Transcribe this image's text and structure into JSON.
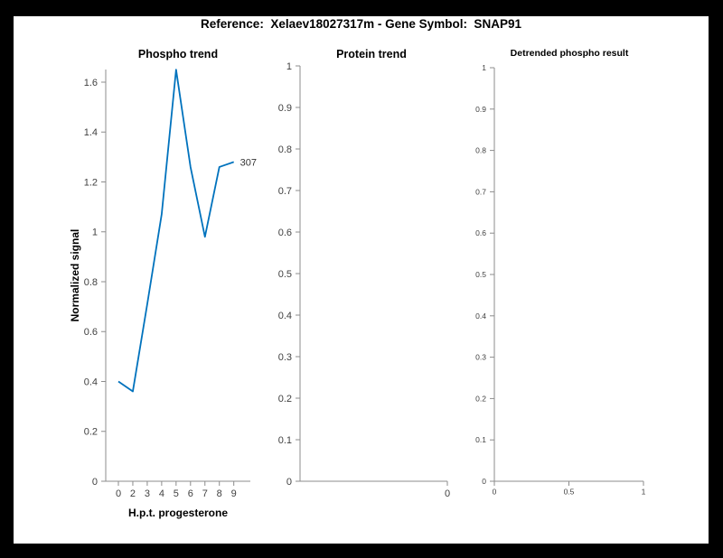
{
  "figure": {
    "title": "Reference:  Xelaev18027317m - Gene Symbol:  SNAP91"
  },
  "colors": {
    "background": "#000000",
    "canvas": "#ffffff",
    "line": "#0072BD",
    "axis": "#8c8c8c",
    "tick_label": "#404040",
    "title_text": "#000000",
    "annotation": "#333333"
  },
  "chart_data": [
    {
      "type": "line",
      "title": "Phospho trend",
      "xlabel": "H.p.t. progesterone",
      "ylabel": "Normalized signal",
      "categories": [
        "0",
        "2",
        "3",
        "4",
        "5",
        "6",
        "7",
        "8",
        "9"
      ],
      "values": [
        0.4,
        0.36,
        0.71,
        1.07,
        1.65,
        1.26,
        0.98,
        1.26,
        1.28
      ],
      "end_label": "307",
      "xticks": [
        "0",
        "2",
        "3",
        "4",
        "5",
        "6",
        "7",
        "8",
        "9"
      ],
      "yticks": [
        "0",
        "0.2",
        "0.4",
        "0.6",
        "0.8",
        "1",
        "1.2",
        "1.4",
        "1.6"
      ],
      "ylim": [
        0,
        1.68
      ],
      "grid": false,
      "legend": null,
      "line_color": "#0072BD"
    },
    {
      "type": "line",
      "title": "Protein trend",
      "xlabel": "",
      "ylabel": "",
      "categories": [],
      "values": [],
      "xticks": [
        "0"
      ],
      "yticks": [
        "0",
        "0.1",
        "0.2",
        "0.3",
        "0.4",
        "0.5",
        "0.6",
        "0.7",
        "0.8",
        "0.9",
        "1"
      ],
      "ylim": [
        0,
        1
      ],
      "grid": false,
      "legend": null
    },
    {
      "type": "line",
      "title": "Detrended phospho result",
      "xlabel": "",
      "ylabel": "",
      "categories": [],
      "values": [],
      "xticks": [
        "0",
        "0.5",
        "1"
      ],
      "yticks": [
        "0",
        "0.1",
        "0.2",
        "0.3",
        "0.4",
        "0.5",
        "0.6",
        "0.7",
        "0.8",
        "0.9",
        "1"
      ],
      "xlim": [
        0,
        1
      ],
      "ylim": [
        0,
        1
      ],
      "grid": false,
      "legend": null
    }
  ]
}
